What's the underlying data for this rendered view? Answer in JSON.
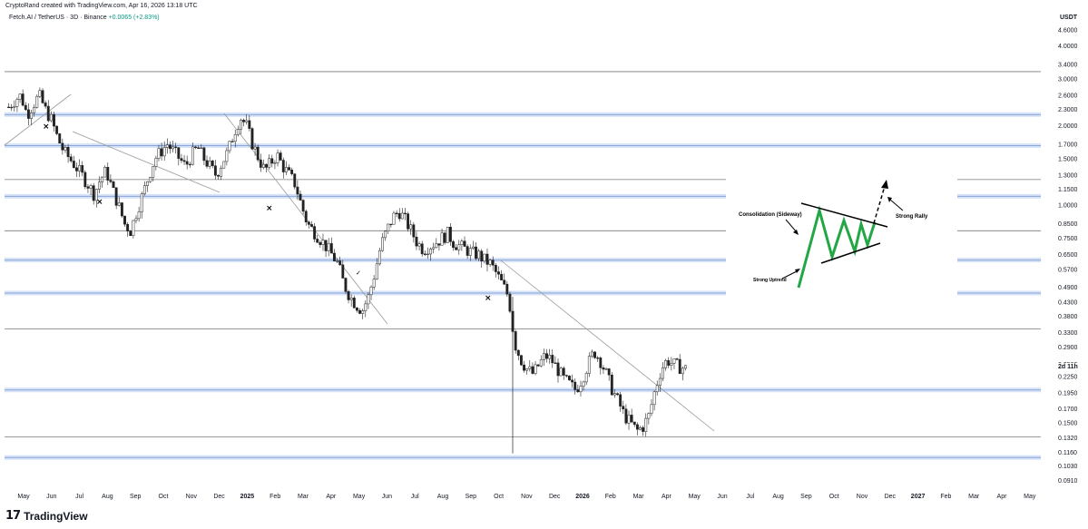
{
  "credit": "CryptoRand created with TradingView.com, Apr 16, 2026 13:18 UTC",
  "symbol": {
    "name": "Fetch.AI / TetherUS · 3D · Binance",
    "change": "+0.0065 (+2.83%)"
  },
  "brand": "TradingView",
  "brand_icon": "tradingview-logo-icon",
  "chart_data": {
    "type": "candlestick",
    "currency_label": "USDT",
    "price_scale": "log",
    "ylim": [
      0.085,
      4.9
    ],
    "y_ticks": [
      "4.6000",
      "4.0000",
      "3.4000",
      "3.0000",
      "2.6000",
      "2.3000",
      "2.0000",
      "1.7000",
      "1.5000",
      "1.3000",
      "1.1500",
      "1.0000",
      "0.8500",
      "0.7500",
      "0.6500",
      "0.5700",
      "0.4900",
      "0.4300",
      "0.3800",
      "0.3300",
      "0.2900",
      "0.2500",
      "0.2250",
      "0.1950",
      "0.1700",
      "0.1500",
      "0.1320",
      "0.1160",
      "0.1030",
      "0.0910"
    ],
    "last_price": "2d 11h",
    "x_ticks": [
      {
        "label": "May",
        "bold": false
      },
      {
        "label": "Jun",
        "bold": false
      },
      {
        "label": "Jul",
        "bold": false
      },
      {
        "label": "Aug",
        "bold": false
      },
      {
        "label": "Sep",
        "bold": false
      },
      {
        "label": "Oct",
        "bold": false
      },
      {
        "label": "Nov",
        "bold": false
      },
      {
        "label": "Dec",
        "bold": false
      },
      {
        "label": "2025",
        "bold": true
      },
      {
        "label": "Feb",
        "bold": false
      },
      {
        "label": "Mar",
        "bold": false
      },
      {
        "label": "Apr",
        "bold": false
      },
      {
        "label": "May",
        "bold": false
      },
      {
        "label": "Jun",
        "bold": false
      },
      {
        "label": "Jul",
        "bold": false
      },
      {
        "label": "Aug",
        "bold": false
      },
      {
        "label": "Sep",
        "bold": false
      },
      {
        "label": "Oct",
        "bold": false
      },
      {
        "label": "Nov",
        "bold": false
      },
      {
        "label": "Dec",
        "bold": false
      },
      {
        "label": "2026",
        "bold": true
      },
      {
        "label": "Feb",
        "bold": false
      },
      {
        "label": "Mar",
        "bold": false
      },
      {
        "label": "Apr",
        "bold": false
      },
      {
        "label": "May",
        "bold": false
      },
      {
        "label": "Jun",
        "bold": false
      },
      {
        "label": "Jul",
        "bold": false
      },
      {
        "label": "Aug",
        "bold": false
      },
      {
        "label": "Sep",
        "bold": false
      },
      {
        "label": "Oct",
        "bold": false
      },
      {
        "label": "Nov",
        "bold": false
      },
      {
        "label": "Dec",
        "bold": false
      },
      {
        "label": "2027",
        "bold": true
      },
      {
        "label": "Feb",
        "bold": false
      },
      {
        "label": "Mar",
        "bold": false
      },
      {
        "label": "Apr",
        "bold": false
      },
      {
        "label": "May",
        "bold": false
      }
    ],
    "price_path": [
      2.35,
      2.5,
      2.6,
      2.2,
      2.4,
      2.6,
      2.3,
      2.1,
      1.8,
      1.6,
      1.5,
      1.4,
      1.3,
      1.2,
      1.1,
      1.25,
      1.35,
      1.15,
      1.0,
      0.85,
      0.8,
      0.95,
      1.1,
      1.3,
      1.5,
      1.6,
      1.7,
      1.6,
      1.5,
      1.4,
      1.55,
      1.65,
      1.5,
      1.4,
      1.3,
      1.45,
      1.6,
      1.9,
      2.15,
      2.0,
      1.7,
      1.5,
      1.35,
      1.45,
      1.55,
      1.4,
      1.3,
      1.2,
      1.0,
      0.85,
      0.8,
      0.75,
      0.7,
      0.65,
      0.6,
      0.5,
      0.45,
      0.42,
      0.4,
      0.45,
      0.55,
      0.7,
      0.8,
      0.9,
      0.95,
      0.88,
      0.8,
      0.72,
      0.68,
      0.7,
      0.72,
      0.75,
      0.78,
      0.72,
      0.7,
      0.68,
      0.66,
      0.65,
      0.62,
      0.6,
      0.55,
      0.5,
      0.45,
      0.3,
      0.26,
      0.24,
      0.23,
      0.25,
      0.27,
      0.26,
      0.24,
      0.22,
      0.21,
      0.2,
      0.22,
      0.25,
      0.28,
      0.26,
      0.23,
      0.2,
      0.18,
      0.16,
      0.15,
      0.14,
      0.145,
      0.16,
      0.2,
      0.24,
      0.26,
      0.25,
      0.245,
      0.24
    ],
    "horizontal_levels": [
      {
        "price": 3.2,
        "kind": "line"
      },
      {
        "price": 2.2,
        "kind": "zone"
      },
      {
        "price": 1.68,
        "kind": "zone"
      },
      {
        "price": 1.25,
        "kind": "line"
      },
      {
        "price": 1.08,
        "kind": "zone"
      },
      {
        "price": 0.8,
        "kind": "line"
      },
      {
        "price": 0.62,
        "kind": "zone"
      },
      {
        "price": 0.465,
        "kind": "zone"
      },
      {
        "price": 0.34,
        "kind": "line"
      },
      {
        "price": 0.2,
        "kind": "zone"
      },
      {
        "price": 0.133,
        "kind": "line"
      },
      {
        "price": 0.111,
        "kind": "zone"
      }
    ],
    "annotations": {
      "consolidation_label": "Consolidation (Sideway)",
      "uptrend_label": "Strong Uptrend",
      "rally_label": "Strong Rally"
    }
  }
}
